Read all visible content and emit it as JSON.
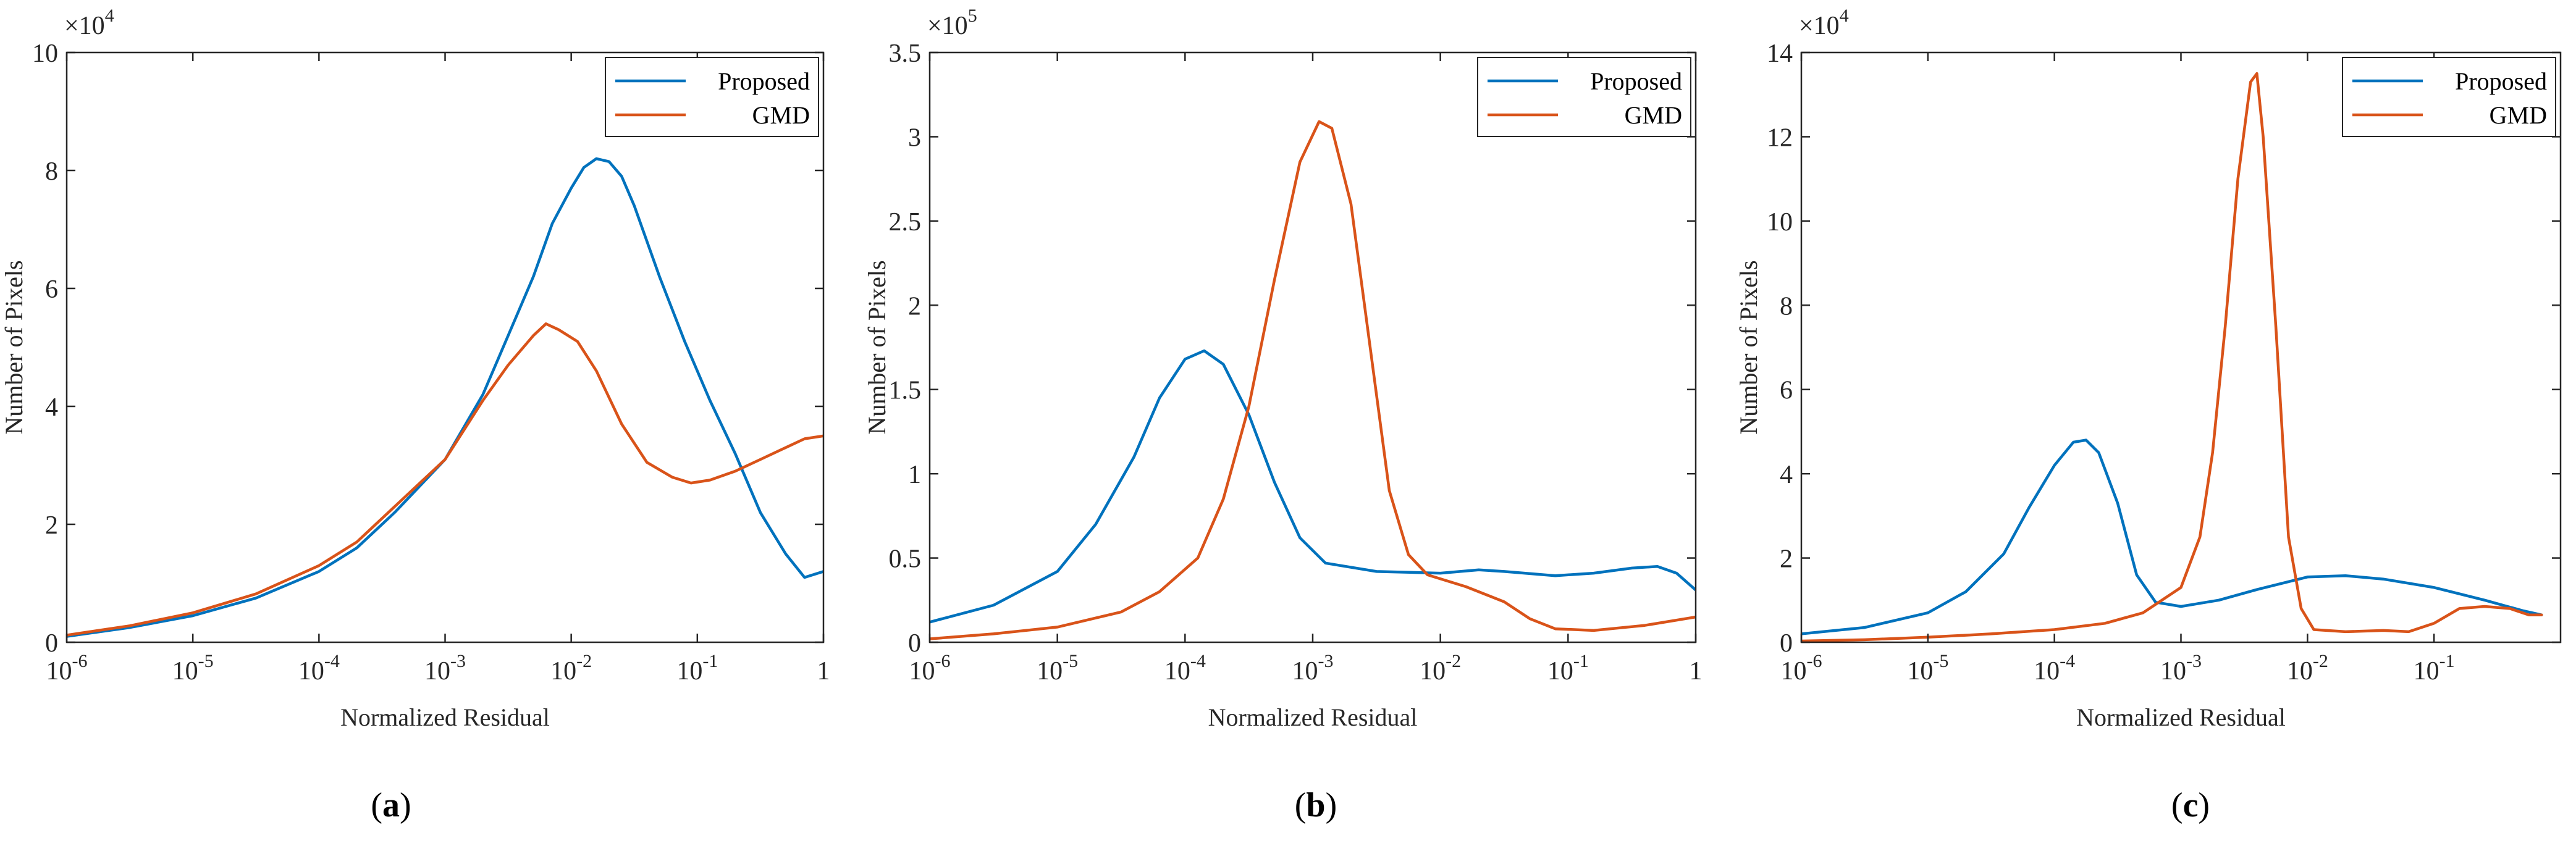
{
  "figure": {
    "background": "#ffffff",
    "axis_color": "#262626"
  },
  "chart_data": [
    {
      "type": "line",
      "caption": {
        "open": "(",
        "label": "a",
        "close": ")"
      },
      "xlabel": "Normalized Residual",
      "ylabel": "Number of Pixels",
      "xscale": "log",
      "xlim": [
        1e-06,
        1
      ],
      "ylim": [
        0,
        100000
      ],
      "x_ticks": [
        {
          "value": 1e-06,
          "base": "10",
          "exp": "-6"
        },
        {
          "value": 1e-05,
          "base": "10",
          "exp": "-5"
        },
        {
          "value": 0.0001,
          "base": "10",
          "exp": "-4"
        },
        {
          "value": 0.001,
          "base": "10",
          "exp": "-3"
        },
        {
          "value": 0.01,
          "base": "10",
          "exp": "-2"
        },
        {
          "value": 0.1,
          "base": "10",
          "exp": "-1"
        },
        {
          "value": 1,
          "base": "1",
          "exp": ""
        }
      ],
      "y_ticks": [
        {
          "value": 0,
          "label": "0"
        },
        {
          "value": 20000,
          "label": "2"
        },
        {
          "value": 40000,
          "label": "4"
        },
        {
          "value": 60000,
          "label": "6"
        },
        {
          "value": 80000,
          "label": "8"
        },
        {
          "value": 100000,
          "label": "10"
        }
      ],
      "y_multiplier": {
        "base": "×10",
        "exp": "4"
      },
      "legend_position": "top-right",
      "series": [
        {
          "name": "Proposed",
          "color": "#0072BD",
          "points": [
            [
              -6,
              1000
            ],
            [
              -5.5,
              2500
            ],
            [
              -5,
              4500
            ],
            [
              -4.5,
              7500
            ],
            [
              -4,
              12000
            ],
            [
              -3.7,
              16000
            ],
            [
              -3.4,
              22000
            ],
            [
              -3.0,
              31000
            ],
            [
              -2.7,
              42000
            ],
            [
              -2.5,
              52000
            ],
            [
              -2.3,
              62000
            ],
            [
              -2.15,
              71000
            ],
            [
              -2.0,
              77000
            ],
            [
              -1.9,
              80500
            ],
            [
              -1.8,
              82000
            ],
            [
              -1.7,
              81500
            ],
            [
              -1.6,
              79000
            ],
            [
              -1.5,
              74000
            ],
            [
              -1.3,
              62000
            ],
            [
              -1.1,
              51000
            ],
            [
              -0.9,
              41000
            ],
            [
              -0.7,
              32000
            ],
            [
              -0.5,
              22000
            ],
            [
              -0.3,
              15000
            ],
            [
              -0.15,
              11000
            ],
            [
              0,
              12000
            ]
          ]
        },
        {
          "name": "GMD",
          "color": "#D95319",
          "points": [
            [
              -6,
              1200
            ],
            [
              -5.5,
              2800
            ],
            [
              -5,
              5000
            ],
            [
              -4.5,
              8200
            ],
            [
              -4,
              13000
            ],
            [
              -3.7,
              17000
            ],
            [
              -3.4,
              23000
            ],
            [
              -3.0,
              31000
            ],
            [
              -2.7,
              41000
            ],
            [
              -2.5,
              47000
            ],
            [
              -2.3,
              52000
            ],
            [
              -2.2,
              54000
            ],
            [
              -2.1,
              53000
            ],
            [
              -1.95,
              51000
            ],
            [
              -1.8,
              46000
            ],
            [
              -1.6,
              37000
            ],
            [
              -1.4,
              30500
            ],
            [
              -1.2,
              28000
            ],
            [
              -1.05,
              27000
            ],
            [
              -0.9,
              27500
            ],
            [
              -0.7,
              29000
            ],
            [
              -0.5,
              31000
            ],
            [
              -0.3,
              33000
            ],
            [
              -0.15,
              34500
            ],
            [
              0,
              35000
            ]
          ]
        }
      ]
    },
    {
      "type": "line",
      "caption": {
        "open": "(",
        "label": "b",
        "close": ")"
      },
      "xlabel": "Normalized Residual",
      "ylabel": "Number of Pixels",
      "xscale": "log",
      "xlim": [
        1e-06,
        1
      ],
      "ylim": [
        0,
        350000
      ],
      "x_ticks": [
        {
          "value": 1e-06,
          "base": "10",
          "exp": "-6"
        },
        {
          "value": 1e-05,
          "base": "10",
          "exp": "-5"
        },
        {
          "value": 0.0001,
          "base": "10",
          "exp": "-4"
        },
        {
          "value": 0.001,
          "base": "10",
          "exp": "-3"
        },
        {
          "value": 0.01,
          "base": "10",
          "exp": "-2"
        },
        {
          "value": 0.1,
          "base": "10",
          "exp": "-1"
        },
        {
          "value": 1,
          "base": "1",
          "exp": ""
        }
      ],
      "y_ticks": [
        {
          "value": 0,
          "label": "0"
        },
        {
          "value": 50000,
          "label": "0.5"
        },
        {
          "value": 100000,
          "label": "1"
        },
        {
          "value": 150000,
          "label": "1.5"
        },
        {
          "value": 200000,
          "label": "2"
        },
        {
          "value": 250000,
          "label": "2.5"
        },
        {
          "value": 300000,
          "label": "3"
        },
        {
          "value": 350000,
          "label": "3.5"
        }
      ],
      "y_multiplier": {
        "base": "×10",
        "exp": "5"
      },
      "legend_position": "top-right",
      "series": [
        {
          "name": "Proposed",
          "color": "#0072BD",
          "points": [
            [
              -6,
              12000
            ],
            [
              -5.5,
              22000
            ],
            [
              -5,
              42000
            ],
            [
              -4.7,
              70000
            ],
            [
              -4.4,
              110000
            ],
            [
              -4.2,
              145000
            ],
            [
              -4.0,
              168000
            ],
            [
              -3.85,
              173000
            ],
            [
              -3.7,
              165000
            ],
            [
              -3.5,
              135000
            ],
            [
              -3.3,
              95000
            ],
            [
              -3.1,
              62000
            ],
            [
              -2.9,
              47000
            ],
            [
              -2.5,
              42000
            ],
            [
              -2.0,
              41000
            ],
            [
              -1.7,
              43000
            ],
            [
              -1.5,
              42000
            ],
            [
              -1.1,
              39500
            ],
            [
              -0.8,
              41000
            ],
            [
              -0.5,
              44000
            ],
            [
              -0.3,
              45000
            ],
            [
              -0.15,
              41000
            ],
            [
              0,
              31000
            ]
          ]
        },
        {
          "name": "GMD",
          "color": "#D95319",
          "points": [
            [
              -6,
              2000
            ],
            [
              -5.5,
              5000
            ],
            [
              -5,
              9000
            ],
            [
              -4.5,
              18000
            ],
            [
              -4.2,
              30000
            ],
            [
              -3.9,
              50000
            ],
            [
              -3.7,
              85000
            ],
            [
              -3.5,
              140000
            ],
            [
              -3.3,
              215000
            ],
            [
              -3.1,
              285000
            ],
            [
              -2.95,
              309000
            ],
            [
              -2.85,
              305000
            ],
            [
              -2.7,
              260000
            ],
            [
              -2.55,
              175000
            ],
            [
              -2.4,
              90000
            ],
            [
              -2.25,
              52000
            ],
            [
              -2.1,
              40000
            ],
            [
              -1.8,
              33000
            ],
            [
              -1.5,
              24000
            ],
            [
              -1.3,
              14000
            ],
            [
              -1.1,
              8000
            ],
            [
              -0.8,
              7000
            ],
            [
              -0.4,
              10000
            ],
            [
              0,
              15000
            ]
          ]
        }
      ]
    },
    {
      "type": "line",
      "caption": {
        "open": "(",
        "label": "c",
        "close": ")"
      },
      "xlabel": "Normalized Residual",
      "ylabel": "Number of Pixels",
      "xscale": "log",
      "xlim": [
        1e-06,
        1
      ],
      "ylim": [
        0,
        140000
      ],
      "x_ticks": [
        {
          "value": 1e-06,
          "base": "10",
          "exp": "-6"
        },
        {
          "value": 1e-05,
          "base": "10",
          "exp": "-5"
        },
        {
          "value": 0.0001,
          "base": "10",
          "exp": "-4"
        },
        {
          "value": 0.001,
          "base": "10",
          "exp": "-3"
        },
        {
          "value": 0.01,
          "base": "10",
          "exp": "-2"
        },
        {
          "value": 0.1,
          "base": "10",
          "exp": "-1"
        }
      ],
      "y_ticks": [
        {
          "value": 0,
          "label": "0"
        },
        {
          "value": 20000,
          "label": "2"
        },
        {
          "value": 40000,
          "label": "4"
        },
        {
          "value": 60000,
          "label": "6"
        },
        {
          "value": 80000,
          "label": "8"
        },
        {
          "value": 100000,
          "label": "10"
        },
        {
          "value": 120000,
          "label": "12"
        },
        {
          "value": 140000,
          "label": "14"
        }
      ],
      "y_multiplier": {
        "base": "×10",
        "exp": "4"
      },
      "legend_position": "top-right",
      "series": [
        {
          "name": "Proposed",
          "color": "#0072BD",
          "points": [
            [
              -6,
              2000
            ],
            [
              -5.5,
              3500
            ],
            [
              -5,
              7000
            ],
            [
              -4.7,
              12000
            ],
            [
              -4.4,
              21000
            ],
            [
              -4.2,
              32000
            ],
            [
              -4.0,
              42000
            ],
            [
              -3.85,
              47500
            ],
            [
              -3.75,
              48000
            ],
            [
              -3.65,
              45000
            ],
            [
              -3.5,
              33000
            ],
            [
              -3.35,
              16000
            ],
            [
              -3.2,
              9500
            ],
            [
              -3.0,
              8500
            ],
            [
              -2.7,
              10000
            ],
            [
              -2.4,
              12500
            ],
            [
              -2.0,
              15500
            ],
            [
              -1.7,
              15800
            ],
            [
              -1.4,
              15000
            ],
            [
              -1.0,
              13000
            ],
            [
              -0.6,
              10000
            ],
            [
              -0.3,
              7500
            ],
            [
              -0.15,
              6500
            ]
          ]
        },
        {
          "name": "GMD",
          "color": "#D95319",
          "points": [
            [
              -6,
              300
            ],
            [
              -5.5,
              600
            ],
            [
              -5,
              1200
            ],
            [
              -4.5,
              2000
            ],
            [
              -4,
              3000
            ],
            [
              -3.6,
              4500
            ],
            [
              -3.3,
              7000
            ],
            [
              -3.0,
              13000
            ],
            [
              -2.85,
              25000
            ],
            [
              -2.75,
              45000
            ],
            [
              -2.65,
              75000
            ],
            [
              -2.55,
              110000
            ],
            [
              -2.45,
              133000
            ],
            [
              -2.4,
              135000
            ],
            [
              -2.35,
              120000
            ],
            [
              -2.25,
              75000
            ],
            [
              -2.15,
              25000
            ],
            [
              -2.05,
              8000
            ],
            [
              -1.95,
              3000
            ],
            [
              -1.7,
              2500
            ],
            [
              -1.4,
              2800
            ],
            [
              -1.2,
              2500
            ],
            [
              -1.0,
              4500
            ],
            [
              -0.8,
              8000
            ],
            [
              -0.6,
              8500
            ],
            [
              -0.4,
              8000
            ],
            [
              -0.25,
              6500
            ],
            [
              -0.15,
              6500
            ]
          ]
        }
      ]
    }
  ]
}
